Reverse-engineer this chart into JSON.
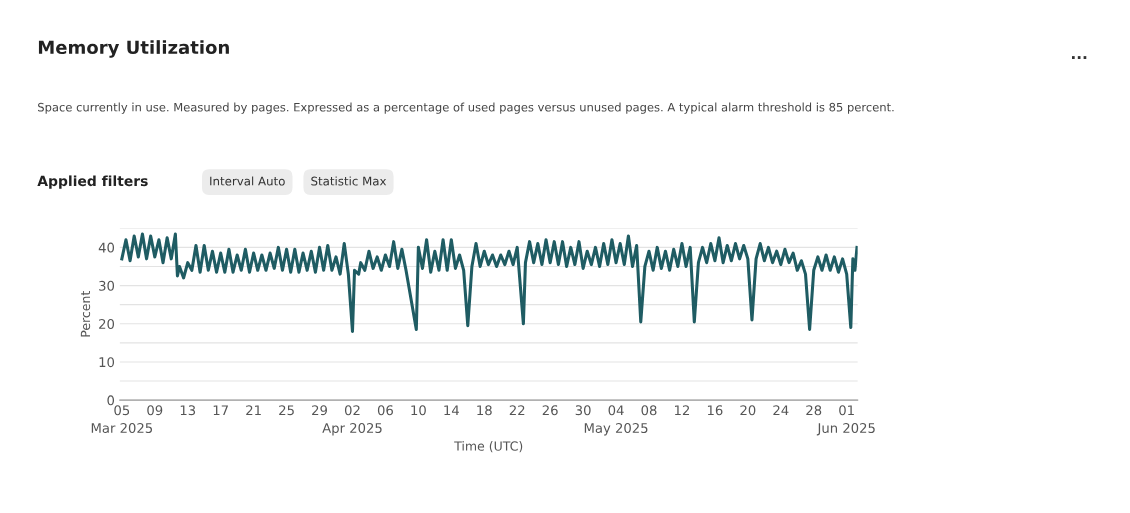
{
  "chart_data": {
    "type": "line",
    "title": "Memory Utilization",
    "subtitle": "Space currently in use. Measured by pages. Expressed as a percentage of used pages versus unused pages. A typical alarm threshold is 85 percent.",
    "annotations": [
      "Applied filters",
      "Interval Auto",
      "Statistic Max",
      "..."
    ],
    "xlabel": "Time (UTC)",
    "ylabel": "Percent",
    "xlim": [
      "2025-03-04T18:00",
      "2025-06-02T08:00"
    ],
    "xticks": [
      {
        "value": "2025-03-05",
        "label": "05\nMar 2025"
      },
      {
        "value": "2025-03-09",
        "label": "09"
      },
      {
        "value": "2025-03-13",
        "label": "13"
      },
      {
        "value": "2025-03-17",
        "label": "17"
      },
      {
        "value": "2025-03-21",
        "label": "21"
      },
      {
        "value": "2025-03-25",
        "label": "25"
      },
      {
        "value": "2025-03-29",
        "label": "29"
      },
      {
        "value": "2025-04-02",
        "label": "02\nApr 2025"
      },
      {
        "value": "2025-04-06",
        "label": "06"
      },
      {
        "value": "2025-04-10",
        "label": "10"
      },
      {
        "value": "2025-04-14",
        "label": "14"
      },
      {
        "value": "2025-04-18",
        "label": "18"
      },
      {
        "value": "2025-04-22",
        "label": "22"
      },
      {
        "value": "2025-04-26",
        "label": "26"
      },
      {
        "value": "2025-04-30",
        "label": "30"
      },
      {
        "value": "2025-05-04",
        "label": "04\nMay 2025"
      },
      {
        "value": "2025-05-08",
        "label": "08"
      },
      {
        "value": "2025-05-12",
        "label": "12"
      },
      {
        "value": "2025-05-16",
        "label": "16"
      },
      {
        "value": "2025-05-20",
        "label": "20"
      },
      {
        "value": "2025-05-24",
        "label": "24"
      },
      {
        "value": "2025-05-28",
        "label": "28"
      },
      {
        "value": "2025-06-01",
        "label": "01\nJun 2025"
      }
    ],
    "ylim": [
      0,
      45
    ],
    "yticks": [
      0,
      {
        "value": 5,
        "label": null
      },
      10,
      {
        "value": 15,
        "label": null
      },
      20,
      {
        "value": 25,
        "label": null
      },
      30,
      {
        "value": 35,
        "label": null
      },
      40,
      {
        "value": 45,
        "label": null
      }
    ],
    "grid": "y",
    "marker": "none",
    "line_style": "solid",
    "series": [
      {
        "color": "#1f5c63",
        "x": [
          "2025-03-05T00:00",
          "2025-03-05T12:00",
          "2025-03-06T00:00",
          "2025-03-06T12:00",
          "2025-03-07T00:00",
          "2025-03-07T12:00",
          "2025-03-08T00:00",
          "2025-03-08T12:00",
          "2025-03-09T00:00",
          "2025-03-09T12:00",
          "2025-03-10T00:00",
          "2025-03-10T12:00",
          "2025-03-11T00:00",
          "2025-03-11T12:00",
          "2025-03-11T18:00",
          "2025-03-12T00:00",
          "2025-03-12T12:00",
          "2025-03-13T00:00",
          "2025-03-13T12:00",
          "2025-03-14T00:00",
          "2025-03-14T12:00",
          "2025-03-15T00:00",
          "2025-03-15T12:00",
          "2025-03-16T00:00",
          "2025-03-16T12:00",
          "2025-03-17T00:00",
          "2025-03-17T12:00",
          "2025-03-18T00:00",
          "2025-03-18T12:00",
          "2025-03-19T00:00",
          "2025-03-19T12:00",
          "2025-03-20T00:00",
          "2025-03-20T12:00",
          "2025-03-21T00:00",
          "2025-03-21T12:00",
          "2025-03-22T00:00",
          "2025-03-22T12:00",
          "2025-03-23T00:00",
          "2025-03-23T12:00",
          "2025-03-24T00:00",
          "2025-03-24T12:00",
          "2025-03-25T00:00",
          "2025-03-25T12:00",
          "2025-03-26T00:00",
          "2025-03-26T12:00",
          "2025-03-27T00:00",
          "2025-03-27T12:00",
          "2025-03-28T00:00",
          "2025-03-28T12:00",
          "2025-03-29T00:00",
          "2025-03-29T12:00",
          "2025-03-30T00:00",
          "2025-03-30T12:00",
          "2025-03-31T00:00",
          "2025-03-31T12:00",
          "2025-04-01T00:00",
          "2025-04-01T12:00",
          "2025-04-02T00:00",
          "2025-04-02T06:00",
          "2025-04-02T18:00",
          "2025-04-03T00:00",
          "2025-04-03T12:00",
          "2025-04-04T00:00",
          "2025-04-04T12:00",
          "2025-04-05T00:00",
          "2025-04-05T12:00",
          "2025-04-06T00:00",
          "2025-04-06T12:00",
          "2025-04-07T00:00",
          "2025-04-07T12:00",
          "2025-04-08T00:00",
          "2025-04-08T12:00",
          "2025-04-09T18:00",
          "2025-04-10T00:00",
          "2025-04-10T12:00",
          "2025-04-11T00:00",
          "2025-04-11T12:00",
          "2025-04-12T00:00",
          "2025-04-12T12:00",
          "2025-04-13T00:00",
          "2025-04-13T12:00",
          "2025-04-14T00:00",
          "2025-04-14T12:00",
          "2025-04-15T00:00",
          "2025-04-15T12:00",
          "2025-04-16T00:00",
          "2025-04-16T12:00",
          "2025-04-17T00:00",
          "2025-04-17T12:00",
          "2025-04-18T00:00",
          "2025-04-18T12:00",
          "2025-04-19T00:00",
          "2025-04-19T12:00",
          "2025-04-20T00:00",
          "2025-04-20T12:00",
          "2025-04-21T00:00",
          "2025-04-21T12:00",
          "2025-04-22T00:00",
          "2025-04-22T18:00",
          "2025-04-23T00:00",
          "2025-04-23T12:00",
          "2025-04-24T00:00",
          "2025-04-24T12:00",
          "2025-04-25T00:00",
          "2025-04-25T12:00",
          "2025-04-26T00:00",
          "2025-04-26T12:00",
          "2025-04-27T00:00",
          "2025-04-27T12:00",
          "2025-04-28T00:00",
          "2025-04-28T12:00",
          "2025-04-29T00:00",
          "2025-04-29T12:00",
          "2025-04-30T00:00",
          "2025-04-30T12:00",
          "2025-05-01T00:00",
          "2025-05-01T12:00",
          "2025-05-02T00:00",
          "2025-05-02T12:00",
          "2025-05-03T00:00",
          "2025-05-03T12:00",
          "2025-05-04T00:00",
          "2025-05-04T12:00",
          "2025-05-05T00:00",
          "2025-05-05T12:00",
          "2025-05-06T00:00",
          "2025-05-06T12:00",
          "2025-05-07T00:00",
          "2025-05-07T12:00",
          "2025-05-08T00:00",
          "2025-05-08T12:00",
          "2025-05-09T00:00",
          "2025-05-09T12:00",
          "2025-05-10T00:00",
          "2025-05-10T12:00",
          "2025-05-11T00:00",
          "2025-05-11T12:00",
          "2025-05-12T00:00",
          "2025-05-12T12:00",
          "2025-05-13T00:00",
          "2025-05-13T12:00",
          "2025-05-14T00:00",
          "2025-05-14T12:00",
          "2025-05-15T00:00",
          "2025-05-15T12:00",
          "2025-05-16T00:00",
          "2025-05-16T12:00",
          "2025-05-17T00:00",
          "2025-05-17T12:00",
          "2025-05-18T00:00",
          "2025-05-18T12:00",
          "2025-05-19T00:00",
          "2025-05-19T12:00",
          "2025-05-20T00:00",
          "2025-05-20T12:00",
          "2025-05-21T00:00",
          "2025-05-21T12:00",
          "2025-05-22T00:00",
          "2025-05-22T12:00",
          "2025-05-23T00:00",
          "2025-05-23T12:00",
          "2025-05-24T00:00",
          "2025-05-24T12:00",
          "2025-05-25T00:00",
          "2025-05-25T12:00",
          "2025-05-26T00:00",
          "2025-05-26T12:00",
          "2025-05-27T00:00",
          "2025-05-27T12:00",
          "2025-05-28T00:00",
          "2025-05-28T12:00",
          "2025-05-29T00:00",
          "2025-05-29T12:00",
          "2025-05-30T00:00",
          "2025-05-30T12:00",
          "2025-05-31T00:00",
          "2025-05-31T12:00",
          "2025-06-01T00:00",
          "2025-06-01T12:00",
          "2025-06-01T18:00",
          "2025-06-02T00:00",
          "2025-06-02T06:00"
        ],
        "values": [
          37,
          42,
          36.5,
          43,
          37.5,
          43.5,
          37,
          43,
          37.5,
          42,
          36,
          42.5,
          37,
          43.5,
          32.5,
          35,
          32,
          36,
          34,
          40.5,
          33.5,
          40.5,
          34,
          39,
          33.5,
          38.5,
          33.5,
          39.5,
          33.5,
          38,
          34,
          39.5,
          33.5,
          38.5,
          34,
          38,
          34,
          38.5,
          34.5,
          40,
          34,
          39.5,
          33.5,
          39.5,
          33.5,
          38.5,
          34,
          39,
          33.5,
          40,
          34,
          40.5,
          34,
          37.5,
          33,
          41,
          33,
          18,
          34,
          33,
          36,
          34,
          39,
          34.5,
          37.5,
          34,
          38,
          35,
          41.5,
          34.5,
          39.5,
          34,
          18.5,
          40,
          34.5,
          42,
          33.5,
          39,
          34,
          42,
          34,
          42,
          34.5,
          38,
          34,
          19.5,
          35,
          41,
          35,
          39,
          35.5,
          38,
          35,
          38,
          35.5,
          39,
          35.5,
          40,
          20,
          36,
          41.5,
          36,
          41,
          35.5,
          42,
          36,
          41.5,
          35.5,
          41.5,
          35,
          40,
          35.5,
          41.5,
          34.5,
          39,
          35.5,
          40,
          35,
          41,
          35.5,
          42,
          36,
          41,
          35.5,
          43,
          35,
          40.5,
          20.5,
          35,
          39,
          34,
          40,
          34.5,
          39,
          34,
          39.5,
          35,
          41,
          35,
          40,
          20.5,
          36,
          40,
          36,
          41,
          36.5,
          42.5,
          36,
          40.5,
          36.5,
          41,
          37,
          40.5,
          37,
          21,
          37,
          41,
          36.5,
          40,
          36,
          39,
          35.5,
          39.5,
          36,
          38.5,
          34,
          36.5,
          33,
          18.5,
          34,
          37.5,
          34,
          38,
          34,
          37.5,
          33.5,
          37,
          33,
          19,
          37,
          34,
          40
        ]
      }
    ]
  }
}
